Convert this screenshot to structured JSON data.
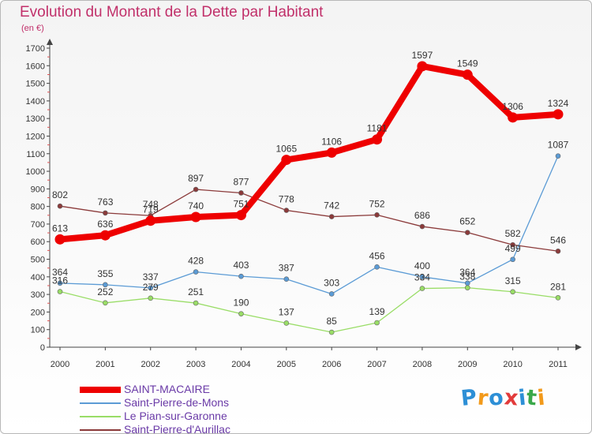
{
  "header": {
    "title": "Evolution du Montant de la Dette par Habitant",
    "subtitle": "(en €)"
  },
  "logo": {
    "letters": [
      "P",
      "r",
      "o",
      "x",
      "i",
      "t",
      "i"
    ],
    "colors": [
      "#2d8fd6",
      "#f29a1b",
      "#2d8fd6",
      "#e23b3b",
      "#2d8fd6",
      "#3aa84a",
      "#f29a1b"
    ]
  },
  "chart_data": {
    "type": "line",
    "title": "Evolution du Montant de la Dette par Habitant",
    "subtitle": "(en €)",
    "xlabel": "",
    "ylabel": "",
    "categories": [
      "2000",
      "2001",
      "2002",
      "2003",
      "2004",
      "2005",
      "2006",
      "2007",
      "2008",
      "2009",
      "2010",
      "2011"
    ],
    "ylim": [
      0,
      1700
    ],
    "yticks": [
      0,
      100,
      200,
      300,
      400,
      500,
      600,
      700,
      800,
      900,
      1000,
      1100,
      1200,
      1300,
      1400,
      1500,
      1600,
      1700
    ],
    "grid": false,
    "legend_position": "bottom-left",
    "series": [
      {
        "name": "SAINT-MACAIRE",
        "color": "#ee0000",
        "values": [
          613,
          636,
          719,
          740,
          751,
          1065,
          1106,
          1181,
          1597,
          1549,
          1306,
          1324
        ],
        "labels": [
          "613",
          "636",
          "719",
          "740",
          "751",
          "1065",
          "1106",
          "1181",
          "1597",
          "1549",
          "1306",
          "1324"
        ]
      },
      {
        "name": "Saint-Pierre-de-Mons",
        "color": "#5b9bd5",
        "values": [
          364,
          355,
          337,
          428,
          403,
          387,
          303,
          456,
          400,
          364,
          499,
          1087
        ],
        "labels": [
          "364",
          "355",
          "337",
          "428",
          "403",
          "387",
          "303",
          "456",
          "400",
          "364",
          "499",
          "1087"
        ]
      },
      {
        "name": "Le Pian-sur-Garonne",
        "color": "#99dd66",
        "values": [
          316,
          252,
          279,
          251,
          190,
          137,
          85,
          139,
          334,
          338,
          315,
          281
        ],
        "labels": [
          "316",
          "252",
          "279",
          "251",
          "190",
          "137",
          "85",
          "139",
          "334",
          "338",
          "315",
          "281"
        ]
      },
      {
        "name": "Saint-Pierre-d'Aurillac",
        "color": "#8b3a3a",
        "values": [
          802,
          763,
          748,
          897,
          877,
          778,
          742,
          752,
          686,
          652,
          582,
          546
        ],
        "labels": [
          "802",
          "763",
          "748",
          "897",
          "877",
          "778",
          "742",
          "752",
          "686",
          "652",
          "582",
          "546"
        ]
      }
    ]
  }
}
